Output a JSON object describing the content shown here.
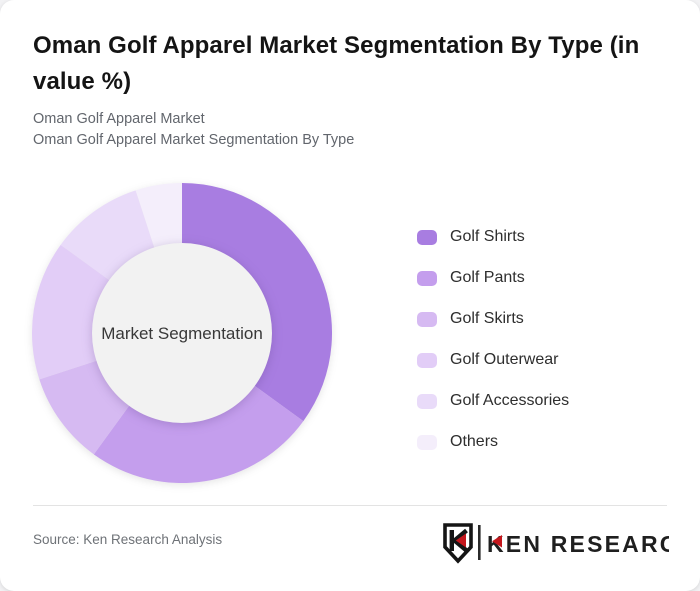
{
  "header": {
    "title": "Oman Golf Apparel Market Segmentation By Type (in value %)",
    "subtitle_line1": "Oman Golf Apparel Market",
    "subtitle_line2": "Oman Golf Apparel Market Segmentation By Type"
  },
  "chart_data": {
    "type": "pie",
    "variant": "donut",
    "title": "Oman Golf Apparel Market Segmentation By Type (in value %)",
    "unit": "value %",
    "center_label": "Market Segmentation",
    "start_angle_deg": 0,
    "direction": "clockwise",
    "legend_position": "right",
    "inner_circle_color": "#f2f2f2",
    "segments": [
      {
        "label": "Golf Shirts",
        "value": 35,
        "color": "#a87de1"
      },
      {
        "label": "Golf Pants",
        "value": 25,
        "color": "#c49eed"
      },
      {
        "label": "Golf Skirts",
        "value": 10,
        "color": "#d6baf2"
      },
      {
        "label": "Golf Outerwear",
        "value": 15,
        "color": "#e2cdf7"
      },
      {
        "label": "Golf Accessories",
        "value": 10,
        "color": "#e9dbf9"
      },
      {
        "label": "Others",
        "value": 5,
        "color": "#f4eefb"
      }
    ]
  },
  "footer": {
    "source": "Source: Ken Research Analysis",
    "logo": {
      "brand": "KEN RESEARCH",
      "accent_color": "#c4161c",
      "ink_color": "#1f1f1f"
    }
  }
}
